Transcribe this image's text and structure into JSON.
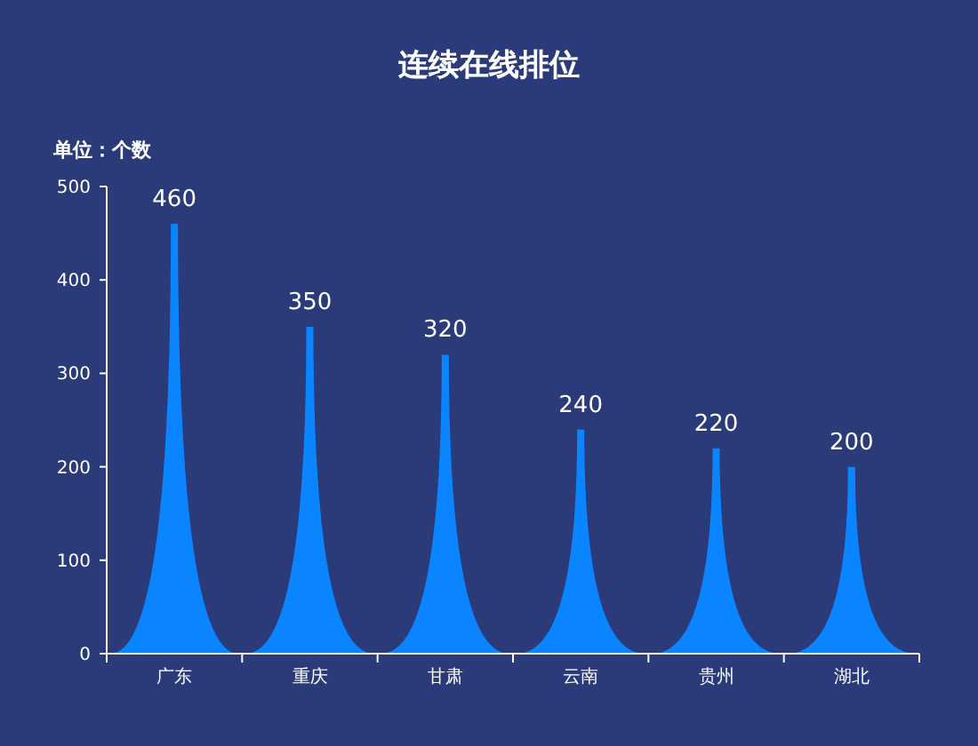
{
  "chart_data": {
    "type": "bar",
    "title": "连续在线排位",
    "ylabel": "单位：个数",
    "categories": [
      "广东",
      "重庆",
      "甘肃",
      "云南",
      "贵州",
      "湖北"
    ],
    "values": [
      460,
      350,
      320,
      240,
      220,
      200
    ],
    "color": "#0a84ff",
    "ylim": [
      0,
      500
    ],
    "yticks": [
      0,
      100,
      200,
      300,
      400,
      500
    ],
    "data_labels": true
  }
}
